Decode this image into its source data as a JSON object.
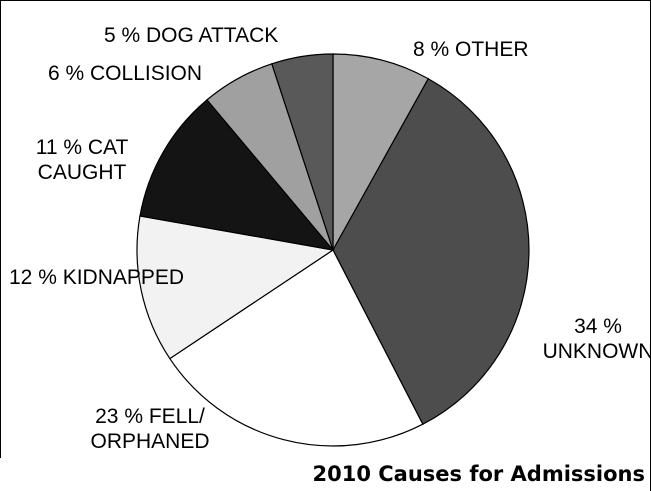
{
  "chart_data": {
    "type": "pie",
    "title": "2010 Causes for Admissions",
    "slices": [
      {
        "label_lines": [
          "8 % OTHER"
        ],
        "value": 8,
        "color": "#a6a6a6"
      },
      {
        "label_lines": [
          "34 %",
          "UNKNOWN"
        ],
        "value": 34,
        "color": "#4d4d4d"
      },
      {
        "label_lines": [
          "23 % FELL/",
          "ORPHANED"
        ],
        "value": 23,
        "color": "#ffffff"
      },
      {
        "label_lines": [
          "12 % KIDNAPPED"
        ],
        "value": 12,
        "color": "#f2f2f2"
      },
      {
        "label_lines": [
          "11 % CAT",
          "CAUGHT"
        ],
        "value": 11,
        "color": "#141414"
      },
      {
        "label_lines": [
          "6 % COLLISION"
        ],
        "value": 6,
        "color": "#a0a0a0"
      },
      {
        "label_lines": [
          "5 % DOG ATTACK"
        ],
        "value": 5,
        "color": "#595959"
      }
    ]
  }
}
